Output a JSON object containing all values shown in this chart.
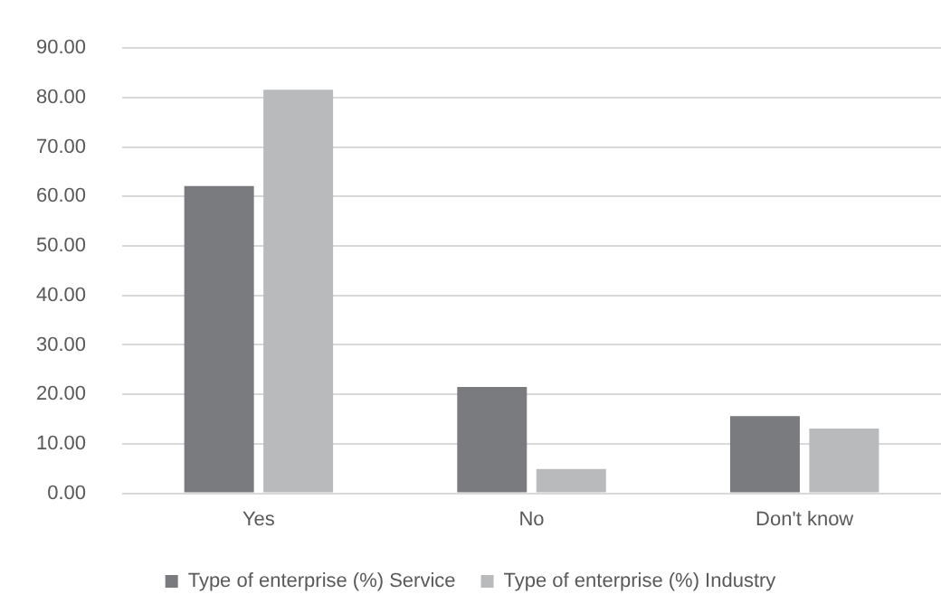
{
  "chart_data": {
    "type": "bar",
    "categories": [
      "Yes",
      "No",
      "Don't know"
    ],
    "series": [
      {
        "name": "Type of enterprise (%) Service",
        "color": "#7a7b7f",
        "values": [
          62.1,
          21.5,
          15.6
        ]
      },
      {
        "name": "Type of enterprise (%) Industry",
        "color": "#b9babc",
        "values": [
          81.6,
          4.9,
          13.1
        ]
      }
    ],
    "ylim": [
      0,
      90
    ],
    "yticks": [
      {
        "value": 0,
        "label": "0.00"
      },
      {
        "value": 10,
        "label": "10.00"
      },
      {
        "value": 20,
        "label": "20.00"
      },
      {
        "value": 30,
        "label": "30.00"
      },
      {
        "value": 40,
        "label": "40.00"
      },
      {
        "value": 50,
        "label": "50.00"
      },
      {
        "value": 60,
        "label": "60.00"
      },
      {
        "value": 70,
        "label": "70.00"
      },
      {
        "value": 80,
        "label": "80.00"
      },
      {
        "value": 90,
        "label": "90.00"
      }
    ],
    "grid": "y",
    "legend": "bottom"
  }
}
